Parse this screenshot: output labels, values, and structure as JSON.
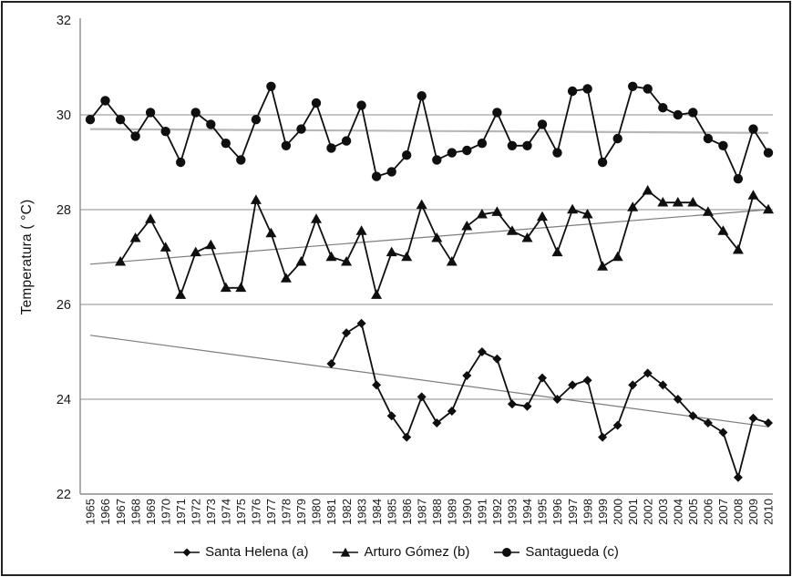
{
  "frame": {
    "border_color": "#222222"
  },
  "chart_data": {
    "type": "line",
    "title": "",
    "xlabel": "",
    "ylabel": "Temperatura ( °C)",
    "ylim": [
      22,
      32
    ],
    "yticks": [
      22,
      24,
      26,
      28,
      30,
      32
    ],
    "gridlines_at": [
      24,
      26,
      28,
      30
    ],
    "grid": "horizontal-only",
    "legend_position": "bottom",
    "axis_color": "#8c8c8c",
    "x_years": [
      1965,
      1966,
      1967,
      1968,
      1969,
      1970,
      1971,
      1972,
      1973,
      1974,
      1975,
      1976,
      1977,
      1978,
      1979,
      1980,
      1981,
      1982,
      1983,
      1984,
      1985,
      1986,
      1987,
      1988,
      1989,
      1990,
      1991,
      1992,
      1993,
      1994,
      1995,
      1996,
      1997,
      1998,
      1999,
      2000,
      2001,
      2002,
      2003,
      2004,
      2005,
      2006,
      2007,
      2008,
      2009,
      2010
    ],
    "series": [
      {
        "name": "Santa Helena (a)",
        "marker": "diamond",
        "color": "#0f0f0f",
        "start_year": 1981,
        "values": [
          24.75,
          25.4,
          25.6,
          24.3,
          23.65,
          23.2,
          24.05,
          23.5,
          23.75,
          24.5,
          25.0,
          24.85,
          23.9,
          23.85,
          24.45,
          24.0,
          24.3,
          24.4,
          23.2,
          23.45,
          24.3,
          24.55,
          24.3,
          24.0,
          23.65,
          23.5,
          23.3,
          22.35,
          23.6,
          23.5
        ],
        "trend": {
          "start_year": 1965,
          "start_value": 25.35,
          "end_year": 2010,
          "end_value": 23.42,
          "color": "#7d7d7d",
          "width": 1.2
        }
      },
      {
        "name": "Arturo Gómez (b)",
        "marker": "triangle",
        "color": "#0f0f0f",
        "start_year": 1967,
        "values": [
          26.9,
          27.4,
          27.8,
          27.2,
          26.2,
          27.1,
          27.25,
          26.35,
          26.35,
          28.2,
          27.5,
          26.55,
          26.9,
          27.8,
          27.0,
          26.9,
          27.55,
          26.2,
          27.1,
          27.0,
          28.1,
          27.4,
          26.9,
          27.65,
          27.9,
          27.95,
          27.55,
          27.4,
          27.85,
          27.1,
          28.0,
          27.9,
          26.8,
          27.0,
          28.05,
          28.4,
          28.15,
          28.15,
          28.15,
          27.95,
          27.55,
          27.15,
          28.3,
          28.0
        ],
        "trend": {
          "start_year": 1965,
          "start_value": 26.85,
          "end_year": 2010,
          "end_value": 28.0,
          "color": "#7d7d7d",
          "width": 1.2
        }
      },
      {
        "name": "Santagueda (c)",
        "marker": "circle",
        "color": "#0f0f0f",
        "start_year": 1965,
        "values": [
          29.9,
          30.3,
          29.9,
          29.55,
          30.05,
          29.65,
          29.0,
          30.05,
          29.8,
          29.4,
          29.05,
          29.9,
          30.6,
          29.35,
          29.7,
          30.25,
          29.3,
          29.45,
          30.2,
          28.7,
          28.8,
          29.15,
          30.4,
          29.05,
          29.2,
          29.25,
          29.4,
          30.05,
          29.35,
          29.35,
          29.8,
          29.2,
          30.5,
          30.55,
          29.0,
          29.5,
          30.6,
          30.55,
          30.15,
          30.0,
          30.05,
          29.5,
          29.35,
          28.65,
          29.7,
          29.2
        ],
        "trend": {
          "start_year": 1965,
          "start_value": 29.7,
          "end_year": 2010,
          "end_value": 29.62,
          "color": "#b8b8b8",
          "width": 2.2
        }
      }
    ]
  }
}
